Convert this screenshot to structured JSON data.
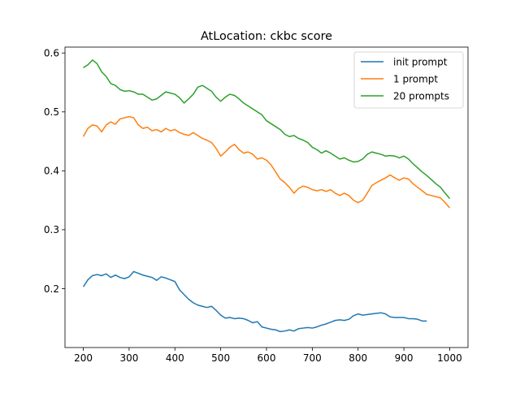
{
  "chart_data": {
    "type": "line",
    "title": "AtLocation: ckbc score",
    "xlabel": "",
    "ylabel": "",
    "xlim": [
      160,
      1040
    ],
    "ylim": [
      0.1,
      0.61
    ],
    "xticks": [
      200,
      300,
      400,
      500,
      600,
      700,
      800,
      900,
      1000
    ],
    "yticks": [
      0.2,
      0.3,
      0.4,
      0.5,
      0.6
    ],
    "xtick_labels": [
      "200",
      "300",
      "400",
      "500",
      "600",
      "700",
      "800",
      "900",
      "1000"
    ],
    "ytick_labels": [
      "0.2",
      "0.3",
      "0.4",
      "0.5",
      "0.6"
    ],
    "grid": false,
    "legend_position": "top-right",
    "series": [
      {
        "name": "init prompt",
        "color": "#1f77b4",
        "x": [
          200,
          210,
          220,
          230,
          240,
          250,
          260,
          270,
          280,
          290,
          300,
          310,
          320,
          330,
          340,
          350,
          360,
          370,
          380,
          390,
          400,
          410,
          420,
          430,
          440,
          450,
          460,
          470,
          480,
          490,
          500,
          510,
          520,
          530,
          540,
          550,
          560,
          570,
          580,
          590,
          600,
          610,
          620,
          630,
          640,
          650,
          660,
          670,
          680,
          690,
          700,
          710,
          720,
          730,
          740,
          750,
          760,
          770,
          780,
          790,
          800,
          810,
          820,
          830,
          840,
          850,
          860,
          870,
          880,
          890,
          900,
          910,
          920,
          930,
          940,
          950
        ],
        "y": [
          0.203,
          0.215,
          0.222,
          0.224,
          0.222,
          0.225,
          0.219,
          0.223,
          0.219,
          0.217,
          0.22,
          0.229,
          0.226,
          0.223,
          0.221,
          0.219,
          0.214,
          0.22,
          0.218,
          0.215,
          0.212,
          0.198,
          0.19,
          0.182,
          0.176,
          0.172,
          0.17,
          0.168,
          0.17,
          0.163,
          0.155,
          0.15,
          0.151,
          0.149,
          0.15,
          0.149,
          0.146,
          0.142,
          0.144,
          0.135,
          0.133,
          0.131,
          0.13,
          0.127,
          0.128,
          0.13,
          0.128,
          0.132,
          0.133,
          0.134,
          0.133,
          0.135,
          0.138,
          0.14,
          0.143,
          0.146,
          0.147,
          0.146,
          0.148,
          0.154,
          0.157,
          0.155,
          0.156,
          0.157,
          0.158,
          0.159,
          0.157,
          0.152,
          0.151,
          0.151,
          0.151,
          0.149,
          0.149,
          0.148,
          0.145,
          0.145
        ]
      },
      {
        "name": "1 prompt",
        "color": "#ff7f0e",
        "x": [
          200,
          210,
          220,
          230,
          240,
          250,
          260,
          270,
          280,
          290,
          300,
          310,
          320,
          330,
          340,
          350,
          360,
          370,
          380,
          390,
          400,
          410,
          420,
          430,
          440,
          450,
          460,
          470,
          480,
          490,
          500,
          510,
          520,
          530,
          540,
          550,
          560,
          570,
          580,
          590,
          600,
          610,
          620,
          630,
          640,
          650,
          660,
          670,
          680,
          690,
          700,
          710,
          720,
          730,
          740,
          750,
          760,
          770,
          780,
          790,
          800,
          810,
          820,
          830,
          840,
          850,
          860,
          870,
          880,
          890,
          900,
          910,
          920,
          930,
          940,
          950,
          960,
          970,
          980,
          990,
          1000
        ],
        "y": [
          0.458,
          0.472,
          0.478,
          0.476,
          0.466,
          0.478,
          0.483,
          0.479,
          0.488,
          0.49,
          0.492,
          0.49,
          0.478,
          0.472,
          0.474,
          0.468,
          0.47,
          0.466,
          0.472,
          0.468,
          0.47,
          0.465,
          0.462,
          0.46,
          0.465,
          0.46,
          0.455,
          0.452,
          0.448,
          0.438,
          0.425,
          0.432,
          0.44,
          0.445,
          0.436,
          0.43,
          0.432,
          0.428,
          0.42,
          0.422,
          0.418,
          0.41,
          0.398,
          0.386,
          0.38,
          0.372,
          0.362,
          0.37,
          0.374,
          0.372,
          0.368,
          0.366,
          0.368,
          0.365,
          0.368,
          0.362,
          0.358,
          0.362,
          0.358,
          0.35,
          0.346,
          0.35,
          0.362,
          0.375,
          0.38,
          0.384,
          0.388,
          0.393,
          0.388,
          0.384,
          0.388,
          0.386,
          0.378,
          0.372,
          0.366,
          0.36,
          0.358,
          0.356,
          0.354,
          0.346,
          0.337
        ]
      },
      {
        "name": "20 prompts",
        "color": "#2ca02c",
        "x": [
          200,
          210,
          220,
          230,
          240,
          250,
          260,
          270,
          280,
          290,
          300,
          310,
          320,
          330,
          340,
          350,
          360,
          370,
          380,
          390,
          400,
          410,
          420,
          430,
          440,
          450,
          460,
          470,
          480,
          490,
          500,
          510,
          520,
          530,
          540,
          550,
          560,
          570,
          580,
          590,
          600,
          610,
          620,
          630,
          640,
          650,
          660,
          670,
          680,
          690,
          700,
          710,
          720,
          730,
          740,
          750,
          760,
          770,
          780,
          790,
          800,
          810,
          820,
          830,
          840,
          850,
          860,
          870,
          880,
          890,
          900,
          910,
          920,
          930,
          940,
          950,
          960,
          970,
          980,
          990,
          1000
        ],
        "y": [
          0.575,
          0.58,
          0.588,
          0.582,
          0.568,
          0.56,
          0.548,
          0.545,
          0.538,
          0.535,
          0.536,
          0.534,
          0.53,
          0.53,
          0.525,
          0.52,
          0.522,
          0.528,
          0.534,
          0.532,
          0.53,
          0.524,
          0.515,
          0.522,
          0.53,
          0.542,
          0.545,
          0.54,
          0.535,
          0.525,
          0.518,
          0.525,
          0.53,
          0.528,
          0.522,
          0.515,
          0.51,
          0.505,
          0.5,
          0.495,
          0.485,
          0.48,
          0.475,
          0.47,
          0.462,
          0.458,
          0.46,
          0.455,
          0.452,
          0.448,
          0.44,
          0.436,
          0.43,
          0.434,
          0.43,
          0.425,
          0.42,
          0.422,
          0.418,
          0.415,
          0.416,
          0.42,
          0.428,
          0.432,
          0.43,
          0.428,
          0.425,
          0.426,
          0.425,
          0.422,
          0.425,
          0.42,
          0.412,
          0.405,
          0.398,
          0.392,
          0.385,
          0.378,
          0.372,
          0.362,
          0.353
        ]
      }
    ]
  }
}
